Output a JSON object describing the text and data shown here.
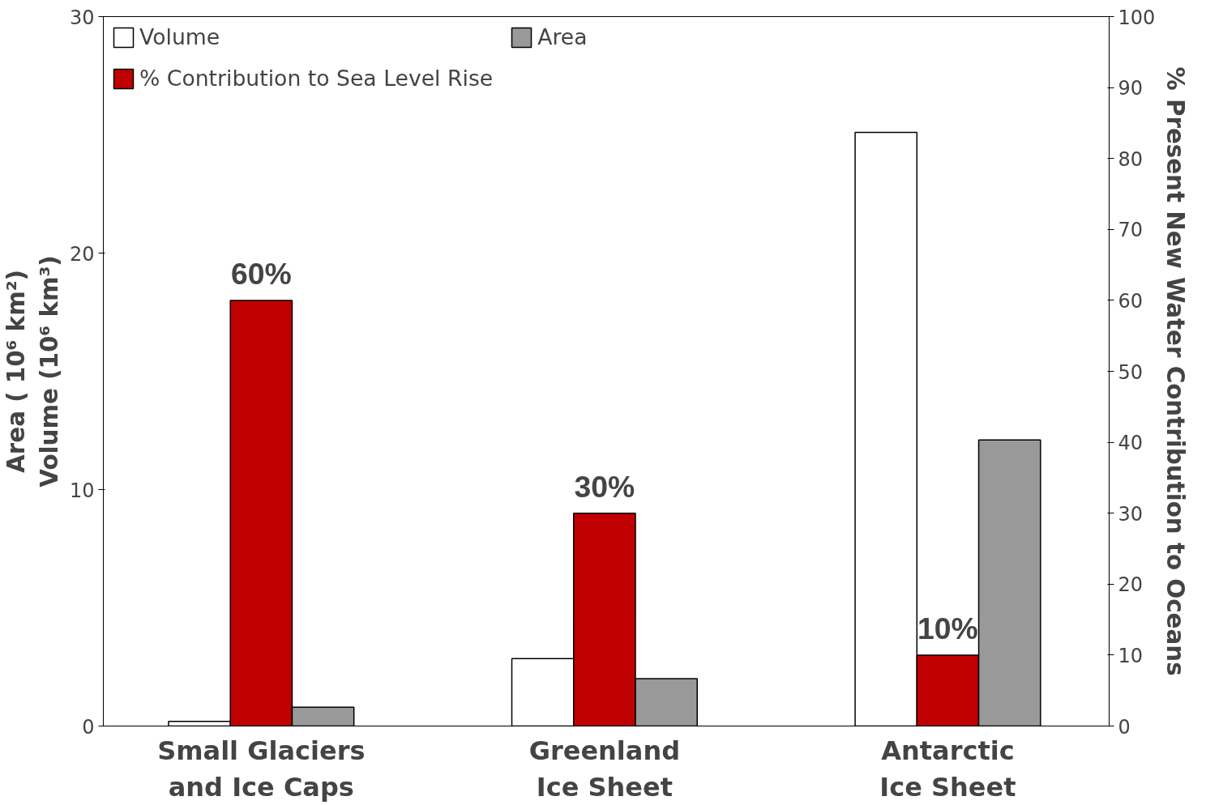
{
  "chart_data": {
    "type": "bar",
    "categories": [
      "Small Glaciers\nand Ice Caps",
      "Greenland\nIce Sheet",
      "Antarctic\nIce Sheet"
    ],
    "ylabel": "Area ( 10⁶ km²)\nVolume (10⁶ km³)",
    "y2label": "% Present New Water Contribution to Oceans",
    "ylim": [
      0,
      30
    ],
    "yticks": [
      0,
      10,
      20,
      30
    ],
    "y2lim": [
      0,
      100
    ],
    "y2ticks": [
      0,
      10,
      20,
      30,
      40,
      50,
      60,
      70,
      80,
      90,
      100
    ],
    "series": [
      {
        "name": "Volume",
        "color": "#ffffff",
        "values": [
          0.2,
          2.85,
          25.1
        ]
      },
      {
        "name": "% Contribution to Sea Level Rise",
        "color": "#c00000",
        "axis": "y2",
        "values": [
          60,
          30,
          10
        ],
        "value_labels": [
          "60%",
          "30%",
          "10%"
        ]
      },
      {
        "name": "Area",
        "color": "#999999",
        "values": [
          0.8,
          2.0,
          12.1
        ]
      }
    ],
    "grid": false,
    "legend": "top left"
  }
}
